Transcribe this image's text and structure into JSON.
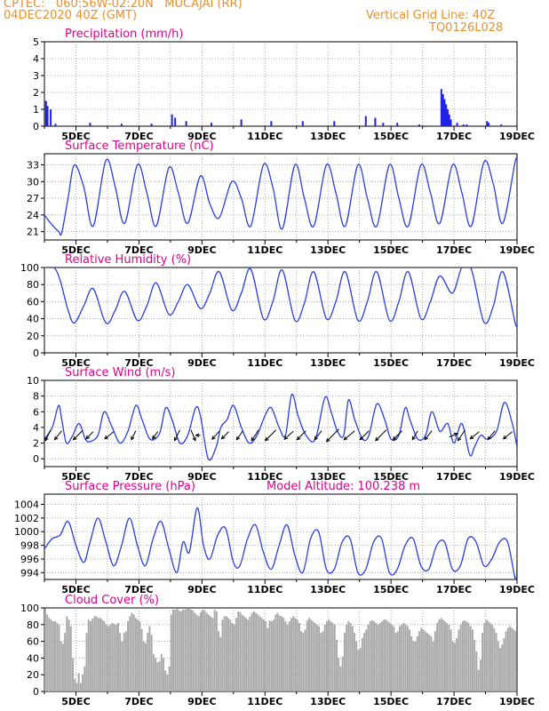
{
  "header": {
    "line1_left": "CPTEC:   060:56W-02:20N   MUCAJAI (RR)",
    "line2_left": "04DEC2020 40Z (GMT)",
    "line1_right": "Vertical Grid Line: 40Z",
    "line2_right": "TQ0126L028"
  },
  "colors": {
    "header": "#e8902c",
    "panel_title": "#e0008c",
    "series_line": "#2a3fe0",
    "precip_bar": "#2020e8",
    "cloud_bar": "#a8a8a8",
    "wind_arrow": "#000000"
  },
  "x_axis": {
    "start_day": 4,
    "end_day": 19,
    "tick_labels": [
      "5DEC",
      "7DEC",
      "9DEC",
      "11DEC",
      "13DEC",
      "15DEC",
      "17DEC",
      "19DEC"
    ]
  },
  "chart_data": [
    {
      "type": "bar",
      "title": "Precipitation (mm/h)",
      "ylim": [
        0,
        5
      ],
      "yticks": [
        "0",
        "1",
        "2",
        "3",
        "4",
        "5"
      ],
      "grid": true,
      "x_day": [
        4.05,
        4.1,
        4.2,
        4.35,
        5.45,
        6.45,
        7.4,
        8.05,
        8.15,
        8.5,
        9.3,
        10.25,
        11.2,
        12.2,
        13.2,
        14.2,
        14.5,
        14.75,
        15.2,
        15.9,
        16.6,
        16.65,
        16.7,
        16.75,
        16.8,
        16.85,
        16.9,
        17.1,
        17.3,
        17.4,
        18.05,
        18.1,
        18.5
      ],
      "values": [
        1.5,
        1.2,
        1.0,
        0.15,
        0.2,
        0.15,
        0.15,
        0.7,
        0.5,
        0.3,
        0.2,
        0.4,
        0.3,
        0.3,
        0.3,
        0.6,
        0.5,
        0.2,
        0.2,
        0.1,
        2.2,
        1.9,
        1.6,
        1.3,
        1.0,
        0.7,
        0.4,
        0.2,
        0.1,
        0.1,
        0.3,
        0.2,
        0.1
      ]
    },
    {
      "type": "line",
      "title": "Surface Temperature (nC)",
      "ylim": [
        19.5,
        35
      ],
      "yticks": [
        "21",
        "24",
        "27",
        "30",
        "33"
      ],
      "grid": true,
      "series": [
        {
          "x_day": [
            4.0,
            4.2,
            4.45,
            4.55,
            4.75,
            4.95,
            5.25,
            5.55,
            5.95,
            6.25,
            6.55,
            6.95,
            7.25,
            7.55,
            7.95,
            8.25,
            8.55,
            8.95,
            9.25,
            9.55,
            9.95,
            10.25,
            10.55,
            10.95,
            11.25,
            11.55,
            11.95,
            12.25,
            12.55,
            12.95,
            13.25,
            13.55,
            13.95,
            14.25,
            14.55,
            14.95,
            15.25,
            15.55,
            15.95,
            16.25,
            16.55,
            16.95,
            17.25,
            17.55,
            17.95,
            18.25,
            18.55,
            18.95,
            19.0
          ],
          "values": [
            24.0,
            22.5,
            21.0,
            20.8,
            27.0,
            33.0,
            29.0,
            22.0,
            33.8,
            29.0,
            22.5,
            33.0,
            28.0,
            22.0,
            32.5,
            28.0,
            22.5,
            31.0,
            26.0,
            23.5,
            30.0,
            27.0,
            22.0,
            33.0,
            29.0,
            21.5,
            33.0,
            27.0,
            22.0,
            33.0,
            28.0,
            22.0,
            33.0,
            27.0,
            22.0,
            33.0,
            27.0,
            22.0,
            33.0,
            28.0,
            22.5,
            33.0,
            28.0,
            22.0,
            33.5,
            29.5,
            22.5,
            33.8,
            32.0
          ]
        }
      ]
    },
    {
      "type": "line",
      "title": "Relative Humidity (%)",
      "ylim": [
        0,
        100
      ],
      "yticks": [
        "0",
        "20",
        "40",
        "60",
        "80",
        "100"
      ],
      "grid": true,
      "series": [
        {
          "x_day": [
            4.0,
            4.3,
            4.5,
            4.75,
            4.95,
            5.25,
            5.55,
            5.95,
            6.25,
            6.55,
            6.95,
            7.25,
            7.55,
            7.95,
            8.25,
            8.55,
            8.95,
            9.25,
            9.55,
            9.95,
            10.25,
            10.55,
            10.95,
            11.25,
            11.55,
            11.95,
            12.25,
            12.55,
            12.95,
            13.25,
            13.55,
            13.95,
            14.25,
            14.55,
            14.95,
            15.25,
            15.55,
            15.95,
            16.25,
            16.55,
            16.95,
            17.25,
            17.55,
            17.95,
            18.25,
            18.55,
            18.95,
            19.0
          ],
          "values": [
            100,
            100,
            85,
            50,
            35,
            55,
            75,
            35,
            50,
            72,
            38,
            55,
            82,
            45,
            60,
            80,
            52,
            70,
            95,
            50,
            70,
            98,
            40,
            60,
            97,
            38,
            58,
            95,
            40,
            60,
            95,
            38,
            60,
            95,
            38,
            60,
            95,
            40,
            60,
            90,
            70,
            100,
            98,
            36,
            55,
            95,
            34,
            38
          ]
        }
      ]
    },
    {
      "type": "line",
      "title": "Surface Wind (m/s)",
      "ylim": [
        -1,
        10
      ],
      "yticks": [
        "0",
        "2",
        "4",
        "6",
        "8",
        "10"
      ],
      "grid": true,
      "series": [
        {
          "x_day": [
            4.0,
            4.25,
            4.45,
            4.55,
            4.7,
            4.9,
            5.1,
            5.3,
            5.45,
            5.7,
            5.9,
            6.15,
            6.4,
            6.65,
            6.9,
            7.1,
            7.35,
            7.65,
            7.85,
            8.05,
            8.3,
            8.55,
            8.8,
            8.95,
            9.2,
            9.45,
            9.6,
            9.8,
            10.0,
            10.25,
            10.5,
            10.75,
            11.0,
            11.2,
            11.45,
            11.65,
            11.85,
            12.05,
            12.3,
            12.6,
            12.9,
            13.1,
            13.3,
            13.5,
            13.65,
            13.85,
            14.1,
            14.3,
            14.55,
            14.8,
            15.0,
            15.25,
            15.45,
            15.6,
            15.85,
            16.1,
            16.3,
            16.55,
            16.8,
            17.0,
            17.25,
            17.5,
            17.65,
            17.85,
            18.05,
            18.35,
            18.6,
            18.85,
            19.0
          ],
          "values": [
            2.5,
            4.0,
            6.8,
            5.0,
            2.0,
            3.0,
            4.5,
            2.5,
            2.2,
            3.0,
            6.0,
            4.0,
            2.0,
            3.5,
            6.8,
            5.0,
            2.5,
            3.2,
            6.5,
            5.0,
            2.0,
            3.0,
            6.5,
            5.5,
            0.0,
            1.5,
            4.0,
            5.0,
            6.8,
            4.0,
            2.0,
            3.0,
            5.5,
            6.5,
            4.0,
            3.0,
            8.2,
            5.5,
            3.0,
            2.5,
            7.8,
            6.0,
            3.5,
            3.0,
            7.5,
            5.0,
            2.5,
            3.0,
            7.0,
            5.0,
            2.5,
            3.0,
            6.5,
            5.0,
            2.5,
            3.0,
            6.0,
            3.5,
            4.5,
            2.0,
            4.5,
            0.5,
            1.5,
            3.0,
            2.5,
            3.5,
            7.2,
            4.5,
            1.5
          ]
        }
      ],
      "wind_vectors": [
        {
          "x_day": 4.2,
          "dx": -6,
          "dy": 12
        },
        {
          "x_day": 4.55,
          "dx": -8,
          "dy": 10
        },
        {
          "x_day": 5.2,
          "dx": -10,
          "dy": 10
        },
        {
          "x_day": 5.55,
          "dx": -8,
          "dy": 8
        },
        {
          "x_day": 6.2,
          "dx": -10,
          "dy": 8
        },
        {
          "x_day": 6.9,
          "dx": -5,
          "dy": 10
        },
        {
          "x_day": 7.6,
          "dx": -6,
          "dy": 8
        },
        {
          "x_day": 8.3,
          "dx": -6,
          "dy": 12
        },
        {
          "x_day": 8.65,
          "dx": 5,
          "dy": 12
        },
        {
          "x_day": 8.95,
          "dx": -5,
          "dy": 0
        },
        {
          "x_day": 9.55,
          "dx": -8,
          "dy": 9
        },
        {
          "x_day": 9.85,
          "dx": -8,
          "dy": 8
        },
        {
          "x_day": 10.3,
          "dx": -7,
          "dy": 10
        },
        {
          "x_day": 10.8,
          "dx": -8,
          "dy": 12
        },
        {
          "x_day": 11.35,
          "dx": -12,
          "dy": 12
        },
        {
          "x_day": 11.9,
          "dx": -10,
          "dy": 9
        },
        {
          "x_day": 12.3,
          "dx": -10,
          "dy": 10
        },
        {
          "x_day": 12.8,
          "dx": -8,
          "dy": 10
        },
        {
          "x_day": 13.35,
          "dx": -14,
          "dy": 14
        },
        {
          "x_day": 13.85,
          "dx": -12,
          "dy": 10
        },
        {
          "x_day": 14.3,
          "dx": -10,
          "dy": 10
        },
        {
          "x_day": 14.85,
          "dx": -12,
          "dy": 12
        },
        {
          "x_day": 15.35,
          "dx": -10,
          "dy": 10
        },
        {
          "x_day": 15.85,
          "dx": -6,
          "dy": 10
        },
        {
          "x_day": 16.3,
          "dx": -8,
          "dy": 10
        },
        {
          "x_day": 16.85,
          "dx": 9,
          "dy": -4
        },
        {
          "x_day": 17.35,
          "dx": -8,
          "dy": 12
        },
        {
          "x_day": 17.8,
          "dx": -10,
          "dy": 8
        },
        {
          "x_day": 18.3,
          "dx": -8,
          "dy": 10
        },
        {
          "x_day": 18.85,
          "dx": -10,
          "dy": 8
        }
      ]
    },
    {
      "type": "line",
      "title": "Surface Pressure (hPa)",
      "subtitle": "Model Altitude: 100.238 m",
      "ylim": [
        993,
        1005.5
      ],
      "yticks": [
        "994",
        "996",
        "998",
        "1000",
        "1002",
        "1004"
      ],
      "grid": true,
      "series": [
        {
          "x_day": [
            4.0,
            4.25,
            4.5,
            4.75,
            5.0,
            5.25,
            5.45,
            5.7,
            5.95,
            6.2,
            6.45,
            6.7,
            6.95,
            7.2,
            7.45,
            7.7,
            7.95,
            8.2,
            8.4,
            8.6,
            8.85,
            9.05,
            9.25,
            9.5,
            9.75,
            10.0,
            10.2,
            10.45,
            10.7,
            10.95,
            11.2,
            11.45,
            11.7,
            11.95,
            12.2,
            12.45,
            12.7,
            12.95,
            13.2,
            13.45,
            13.7,
            13.95,
            14.2,
            14.45,
            14.7,
            14.95,
            15.2,
            15.45,
            15.7,
            15.95,
            16.2,
            16.45,
            16.7,
            16.95,
            17.2,
            17.45,
            17.7,
            17.95,
            18.2,
            18.45,
            18.7,
            18.95,
            19.0
          ],
          "values": [
            997.5,
            999.0,
            999.5,
            1001.5,
            998.0,
            995.5,
            998.5,
            1002.0,
            998.5,
            995.0,
            998.0,
            1002.0,
            998.0,
            995.0,
            999.0,
            1001.5,
            997.5,
            994.0,
            998.5,
            997.0,
            1003.5,
            998.0,
            996.0,
            999.5,
            1000.5,
            995.5,
            995.0,
            999.0,
            1001.0,
            997.0,
            994.5,
            998.0,
            1001.0,
            996.5,
            994.0,
            999.0,
            1000.0,
            994.5,
            994.5,
            998.5,
            999.0,
            994.0,
            994.5,
            998.5,
            999.0,
            994.0,
            994.5,
            998.0,
            999.0,
            995.0,
            994.5,
            998.0,
            998.5,
            994.5,
            995.0,
            999.0,
            998.5,
            995.0,
            996.0,
            998.5,
            998.5,
            993.0,
            995.5
          ]
        }
      ]
    },
    {
      "type": "bar",
      "title": "Cloud Cover (%)",
      "ylim": [
        0,
        100
      ],
      "yticks": [
        "0",
        "20",
        "40",
        "60",
        "80",
        "100"
      ],
      "grid": true,
      "x_day_start": 4.0,
      "x_day_step": 0.0625,
      "values": [
        99,
        92,
        88,
        86,
        84,
        84,
        82,
        80,
        60,
        57,
        70,
        90,
        86,
        78,
        40,
        15,
        10,
        22,
        10,
        20,
        30,
        70,
        86,
        84,
        87,
        90,
        90,
        88,
        88,
        86,
        84,
        80,
        78,
        80,
        82,
        81,
        80,
        82,
        70,
        60,
        70,
        72,
        84,
        90,
        94,
        92,
        88,
        86,
        84,
        75,
        60,
        58,
        70,
        78,
        68,
        45,
        40,
        35,
        36,
        45,
        40,
        25,
        20,
        30,
        92,
        98,
        98,
        99,
        97,
        96,
        98,
        98,
        99,
        99,
        98,
        97,
        94,
        92,
        90,
        95,
        98,
        97,
        94,
        92,
        90,
        88,
        98,
        96,
        72,
        65,
        86,
        90,
        90,
        88,
        86,
        82,
        80,
        88,
        96,
        95,
        92,
        90,
        88,
        86,
        90,
        94,
        96,
        94,
        92,
        90,
        88,
        86,
        84,
        76,
        85,
        84,
        86,
        92,
        94,
        91,
        90,
        88,
        84,
        80,
        84,
        88,
        90,
        88,
        86,
        82,
        72,
        70,
        74,
        85,
        88,
        86,
        84,
        82,
        80,
        78,
        70,
        72,
        80,
        84,
        86,
        84,
        82,
        80,
        62,
        40,
        30,
        42,
        70,
        80,
        84,
        82,
        78,
        70,
        60,
        50,
        52,
        64,
        70,
        74,
        80,
        84,
        85,
        84,
        82,
        80,
        82,
        84,
        86,
        86,
        84,
        82,
        80,
        78,
        70,
        72,
        78,
        80,
        82,
        80,
        78,
        74,
        66,
        60,
        60,
        66,
        72,
        76,
        74,
        72,
        70,
        68,
        66,
        60,
        72,
        82,
        86,
        88,
        86,
        84,
        82,
        80,
        74,
        60,
        58,
        64,
        74,
        80,
        84,
        85,
        84,
        82,
        78,
        74,
        62,
        48,
        26,
        38,
        70,
        82,
        86,
        84,
        82,
        80,
        76,
        70,
        60,
        52,
        56,
        64,
        72,
        76,
        78,
        76,
        74,
        72
      ]
    }
  ]
}
